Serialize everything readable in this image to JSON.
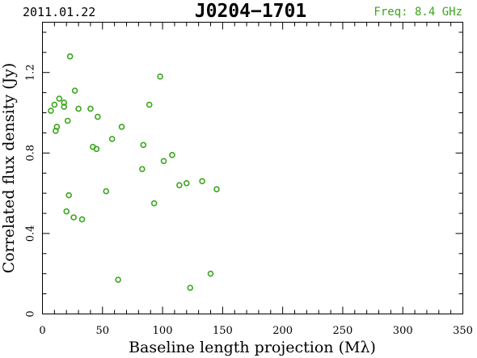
{
  "header": {
    "date": "2011.01.22",
    "source": "J0204−1701",
    "frequency": "Freq: 8.4 GHz"
  },
  "colors": {
    "points": "#3aa61c",
    "frequency_text": "#3aa61c",
    "axes": "#000000"
  },
  "chart_data": {
    "type": "scatter",
    "title": "J0204−1701",
    "xlabel": "Baseline length projection (Mλ)",
    "ylabel": "Correlated flux density (Jy)",
    "xlim": [
      0,
      350
    ],
    "ylim": [
      0,
      1.45
    ],
    "x_ticks": [
      0,
      50,
      100,
      150,
      200,
      250,
      300,
      350
    ],
    "y_ticks": [
      0,
      0.4,
      0.8,
      1.2
    ],
    "x_tick_labels": [
      "0",
      "50",
      "100",
      "150",
      "200",
      "250",
      "300",
      "350"
    ],
    "y_tick_labels": [
      "0",
      "0.4",
      "0.8",
      "1.2"
    ],
    "grid": false,
    "series": [
      {
        "points": [
          [
            7,
            1.01
          ],
          [
            10,
            1.04
          ],
          [
            11,
            0.91
          ],
          [
            12,
            0.93
          ],
          [
            14,
            1.07
          ],
          [
            18,
            1.05
          ],
          [
            18,
            1.03
          ],
          [
            20,
            0.51
          ],
          [
            21,
            0.96
          ],
          [
            22,
            0.59
          ],
          [
            23,
            1.28
          ],
          [
            26,
            0.48
          ],
          [
            27,
            1.11
          ],
          [
            30,
            1.02
          ],
          [
            33,
            0.47
          ],
          [
            40,
            1.02
          ],
          [
            42,
            0.83
          ],
          [
            45,
            0.82
          ],
          [
            46,
            0.98
          ],
          [
            53,
            0.61
          ],
          [
            58,
            0.87
          ],
          [
            63,
            0.17
          ],
          [
            66,
            0.93
          ],
          [
            83,
            0.72
          ],
          [
            84,
            0.84
          ],
          [
            89,
            1.04
          ],
          [
            93,
            0.55
          ],
          [
            98,
            1.18
          ],
          [
            101,
            0.76
          ],
          [
            108,
            0.79
          ],
          [
            114,
            0.64
          ],
          [
            120,
            0.65
          ],
          [
            123,
            0.13
          ],
          [
            133,
            0.66
          ],
          [
            140,
            0.2
          ],
          [
            145,
            0.62
          ]
        ]
      }
    ]
  }
}
